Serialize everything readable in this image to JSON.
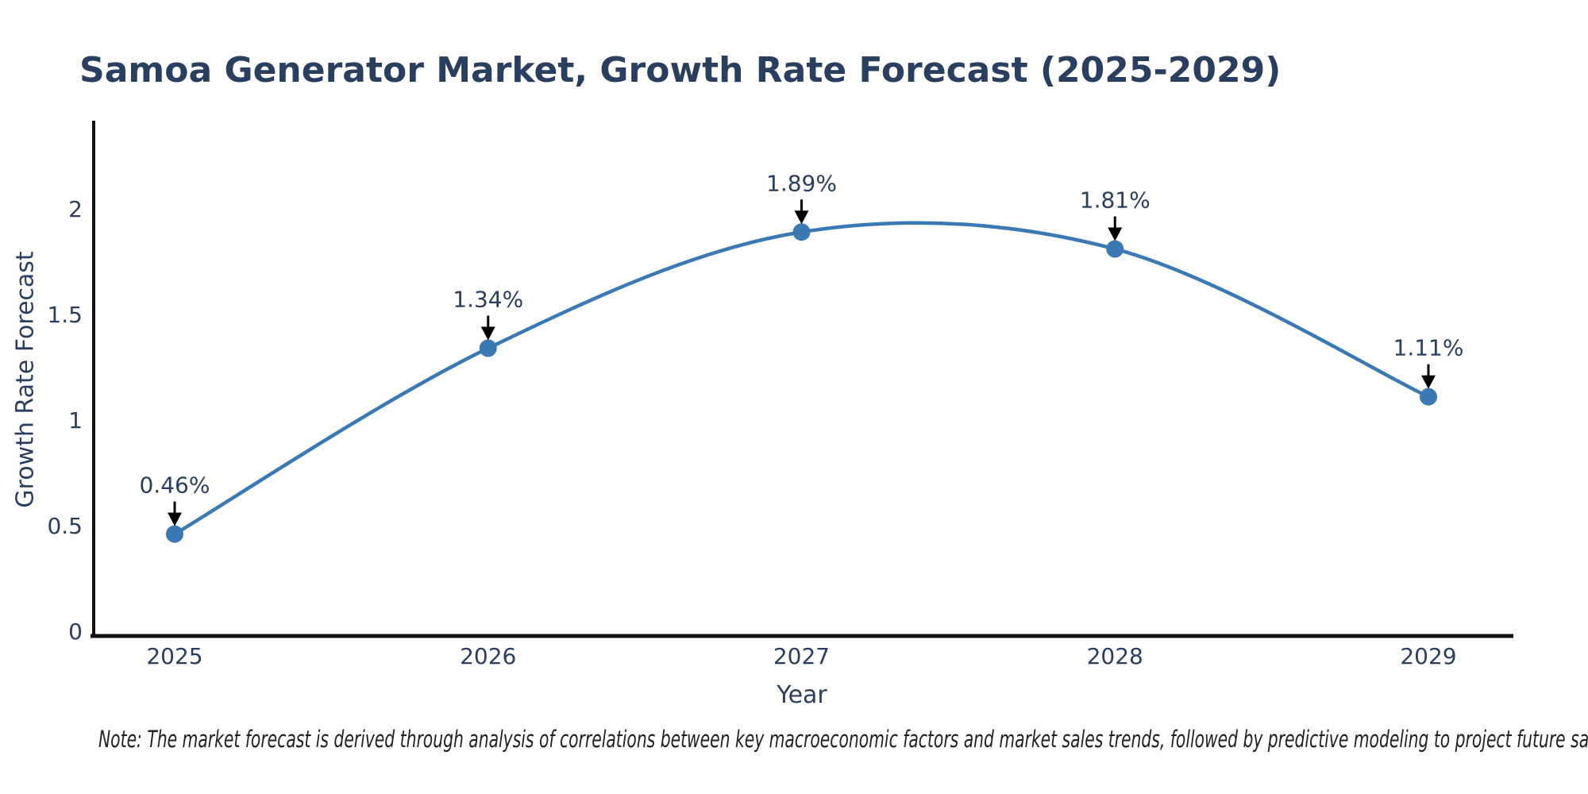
{
  "title": "Samoa Generator Market, Growth Rate Forecast (2025-2029)",
  "note": "Note: The market forecast is derived through analysis of correlations between key macroeconomic factors and market sales trends, followed by predictive modeling to project future sales",
  "chart_data": {
    "type": "line",
    "title": "Samoa Generator Market, Growth Rate Forecast (2025-2029)",
    "xlabel": "Year",
    "ylabel": "Growth Rate Forecast",
    "categories": [
      "2025",
      "2026",
      "2027",
      "2028",
      "2029"
    ],
    "values": [
      0.46,
      1.34,
      1.89,
      1.81,
      1.11
    ],
    "point_labels": [
      "0.46%",
      "1.34%",
      "1.89%",
      "1.81%",
      "1.11%"
    ],
    "y_ticks": [
      0,
      0.5,
      1,
      1.5,
      2
    ],
    "y_tick_labels": [
      "0",
      "0.5",
      "1",
      "1.5",
      "2"
    ],
    "ylim": [
      0,
      2.4
    ],
    "line_shape": "spline",
    "grid": false,
    "legend": "none",
    "annotation_style": "value label above point with downward black arrow",
    "colors": {
      "line": "#3b79b5",
      "marker": "#3b79b5",
      "text": "#2a3f5f",
      "axis": "#111111",
      "annotation_arrow": "#000000",
      "background": "#ffffff"
    }
  }
}
